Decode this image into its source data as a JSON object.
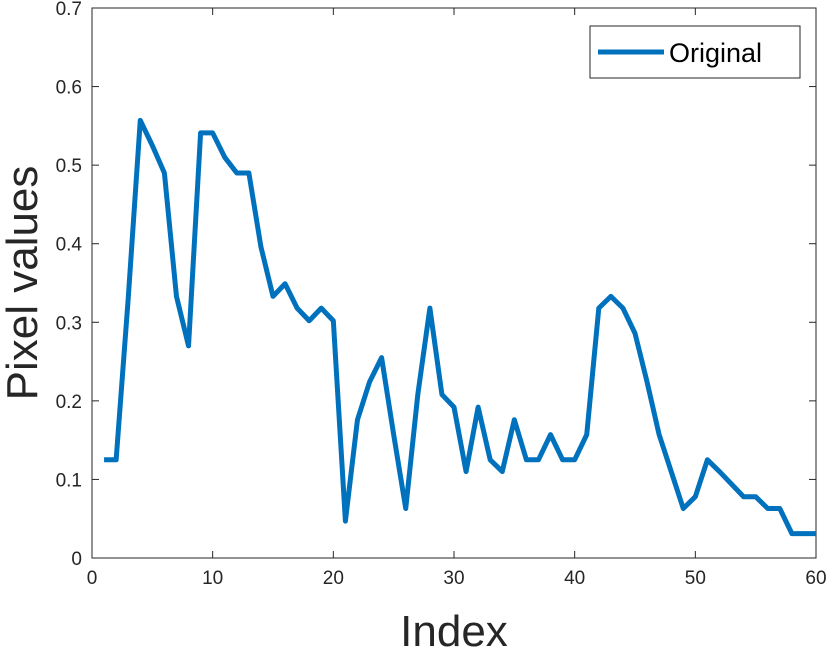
{
  "chart_data": {
    "type": "line",
    "xlabel": "Index",
    "ylabel": "Pixel values",
    "xlim": [
      0,
      60
    ],
    "ylim": [
      0,
      0.7
    ],
    "xticks": [
      "0",
      "10",
      "20",
      "30",
      "40",
      "50",
      "60"
    ],
    "yticks": [
      "0",
      "0.1",
      "0.2",
      "0.3",
      "0.4",
      "0.5",
      "0.6",
      "0.7"
    ],
    "grid": false,
    "legend_location": "top-right",
    "series": [
      {
        "name": "Original",
        "color": "#0072BD",
        "x": [
          1,
          2,
          3,
          4,
          5,
          6,
          7,
          8,
          9,
          10,
          11,
          12,
          13,
          14,
          15,
          16,
          17,
          18,
          19,
          20,
          21,
          22,
          23,
          24,
          25,
          26,
          27,
          28,
          29,
          30,
          31,
          32,
          33,
          34,
          35,
          36,
          37,
          38,
          39,
          40,
          41,
          42,
          43,
          44,
          45,
          46,
          47,
          48,
          49,
          50,
          51,
          52,
          53,
          54,
          55,
          56,
          57,
          58,
          59,
          60
        ],
        "values": [
          0.125,
          0.125,
          0.33,
          0.557,
          0.525,
          0.49,
          0.333,
          0.27,
          0.541,
          0.541,
          0.51,
          0.49,
          0.49,
          0.396,
          0.333,
          0.349,
          0.318,
          0.302,
          0.318,
          0.302,
          0.047,
          0.176,
          0.224,
          0.255,
          0.157,
          0.063,
          0.208,
          0.318,
          0.208,
          0.192,
          0.11,
          0.192,
          0.125,
          0.11,
          0.176,
          0.125,
          0.125,
          0.157,
          0.125,
          0.125,
          0.157,
          0.318,
          0.333,
          0.318,
          0.286,
          0.224,
          0.157,
          0.11,
          0.063,
          0.078,
          0.125,
          0.11,
          0.094,
          0.078,
          0.078,
          0.063,
          0.063,
          0.031,
          0.031,
          0.031
        ]
      }
    ]
  }
}
